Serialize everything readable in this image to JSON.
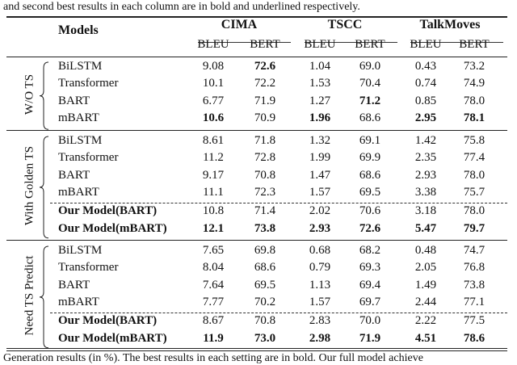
{
  "caption_top": "and second best results in each column are in bold and underlined respectively.",
  "caption_bottom": "Generation results (in %). The best results in each setting are in bold. Our full model achieve",
  "header": {
    "models": "Models",
    "datasets": [
      "CIMA",
      "TSCC",
      "TalkMoves"
    ],
    "metrics": [
      "BLEU",
      "BERT",
      "BLEU",
      "BERT",
      "BLEU",
      "BERT"
    ]
  },
  "groups": [
    {
      "label": "W/O TS",
      "rows": [
        {
          "model": "BiLSTM",
          "values": [
            "9.08",
            "72.6",
            "1.04",
            "69.0",
            "0.43",
            "73.2"
          ],
          "bold": [
            false,
            true,
            false,
            false,
            false,
            false
          ]
        },
        {
          "model": "Transformer",
          "values": [
            "10.1",
            "72.2",
            "1.53",
            "70.4",
            "0.74",
            "74.9"
          ],
          "bold": [
            false,
            false,
            false,
            false,
            false,
            false
          ]
        },
        {
          "model": "BART",
          "values": [
            "6.77",
            "71.9",
            "1.27",
            "71.2",
            "0.85",
            "78.0"
          ],
          "bold": [
            false,
            false,
            false,
            true,
            false,
            false
          ]
        },
        {
          "model": "mBART",
          "values": [
            "10.6",
            "70.9",
            "1.96",
            "68.6",
            "2.95",
            "78.1"
          ],
          "bold": [
            true,
            false,
            true,
            false,
            true,
            true
          ]
        }
      ]
    },
    {
      "label": "With Golden TS",
      "rows": [
        {
          "model": "BiLSTM",
          "values": [
            "8.61",
            "71.8",
            "1.32",
            "69.1",
            "1.42",
            "75.8"
          ],
          "bold": [
            false,
            false,
            false,
            false,
            false,
            false
          ]
        },
        {
          "model": "Transformer",
          "values": [
            "11.2",
            "72.8",
            "1.99",
            "69.9",
            "2.35",
            "77.4"
          ],
          "bold": [
            false,
            false,
            false,
            false,
            false,
            false
          ]
        },
        {
          "model": "BART",
          "values": [
            "9.17",
            "70.8",
            "1.47",
            "68.6",
            "2.93",
            "78.0"
          ],
          "bold": [
            false,
            false,
            false,
            false,
            false,
            false
          ]
        },
        {
          "model": "mBART",
          "values": [
            "11.1",
            "72.3",
            "1.57",
            "69.5",
            "3.38",
            "75.7"
          ],
          "bold": [
            false,
            false,
            false,
            false,
            false,
            false
          ]
        },
        {
          "model": "Our Model(BART)",
          "ours": true,
          "values": [
            "10.8",
            "71.4",
            "2.02",
            "70.6",
            "3.18",
            "78.0"
          ],
          "bold": [
            false,
            false,
            false,
            false,
            false,
            false
          ]
        },
        {
          "model": "Our Model(mBART)",
          "ours": true,
          "values": [
            "12.1",
            "73.8",
            "2.93",
            "72.6",
            "5.47",
            "79.7"
          ],
          "bold": [
            true,
            true,
            true,
            true,
            true,
            true
          ]
        }
      ]
    },
    {
      "label": "Need TS Predict",
      "rows": [
        {
          "model": "BiLSTM",
          "values": [
            "7.65",
            "69.8",
            "0.68",
            "68.2",
            "0.48",
            "74.7"
          ],
          "bold": [
            false,
            false,
            false,
            false,
            false,
            false
          ]
        },
        {
          "model": "Transformer",
          "values": [
            "8.04",
            "68.6",
            "0.79",
            "69.3",
            "2.05",
            "76.8"
          ],
          "bold": [
            false,
            false,
            false,
            false,
            false,
            false
          ]
        },
        {
          "model": "BART",
          "values": [
            "7.64",
            "69.5",
            "1.13",
            "69.4",
            "1.49",
            "73.8"
          ],
          "bold": [
            false,
            false,
            false,
            false,
            false,
            false
          ]
        },
        {
          "model": "mBART",
          "values": [
            "7.77",
            "70.2",
            "1.57",
            "69.7",
            "2.44",
            "77.1"
          ],
          "bold": [
            false,
            false,
            false,
            false,
            false,
            false
          ]
        },
        {
          "model": "Our Model(BART)",
          "ours": true,
          "values": [
            "8.67",
            "70.8",
            "2.83",
            "70.0",
            "2.22",
            "77.5"
          ],
          "bold": [
            false,
            false,
            false,
            false,
            false,
            false
          ]
        },
        {
          "model": "Our Model(mBART)",
          "ours": true,
          "values": [
            "11.9",
            "73.0",
            "2.98",
            "71.9",
            "4.51",
            "78.6"
          ],
          "bold": [
            true,
            true,
            true,
            true,
            true,
            true
          ]
        }
      ]
    }
  ]
}
